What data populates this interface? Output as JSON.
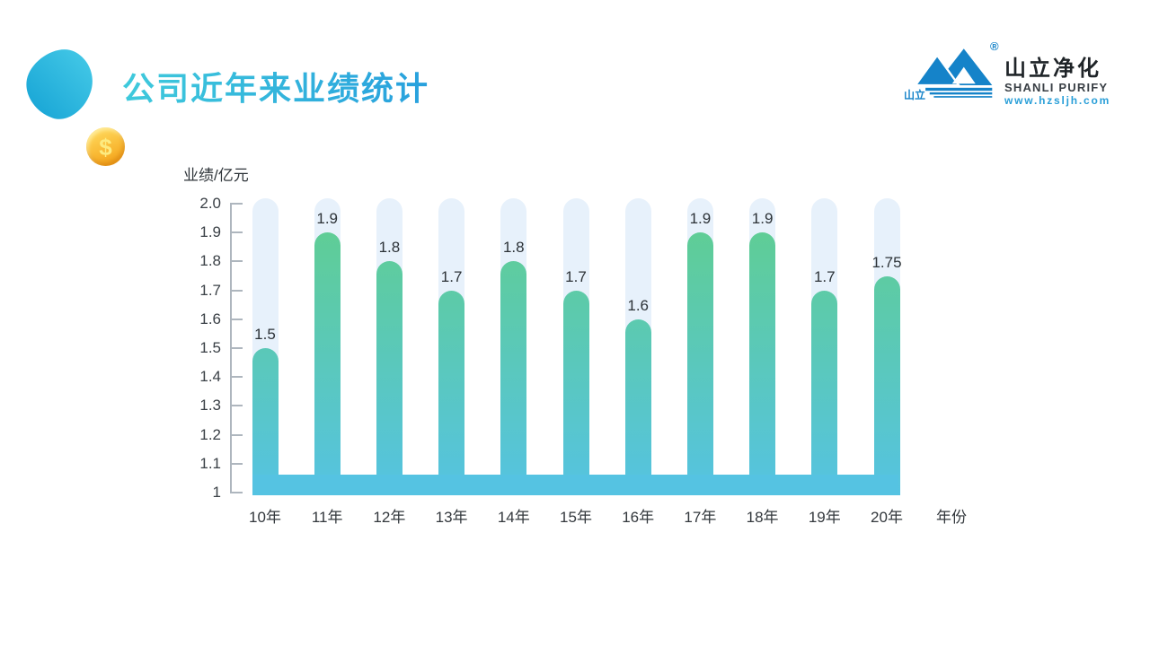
{
  "slide": {
    "title": "公司近年来业绩统计"
  },
  "decor": {
    "coin_symbol": "$"
  },
  "logo": {
    "mark_text": "山立",
    "registered": "®",
    "name_cn": "山立净化",
    "name_en": "SHANLI PURIFY",
    "website": "www.hzsljh.com"
  },
  "chart_data": {
    "type": "bar",
    "title": "公司近年来业绩统计",
    "ylabel": "业绩/亿元",
    "xlabel": "年份",
    "categories": [
      "10年",
      "11年",
      "12年",
      "13年",
      "14年",
      "15年",
      "16年",
      "17年",
      "18年",
      "19年",
      "20年"
    ],
    "values": [
      1.5,
      1.9,
      1.8,
      1.7,
      1.8,
      1.7,
      1.6,
      1.9,
      1.9,
      1.7,
      1.75
    ],
    "ylim": [
      1,
      2
    ],
    "yticks": [
      "2.0",
      "1.9",
      "1.8",
      "1.7",
      "1.6",
      "1.5",
      "1.4",
      "1.3",
      "1.2",
      "1.1",
      "1"
    ],
    "grid": false,
    "legend": false,
    "colors": {
      "bar_gradient_top": "#5fcd96",
      "bar_gradient_bottom": "#55c3e2",
      "pill_background": "#e7f1fb",
      "axis": "#aeb6be"
    }
  }
}
